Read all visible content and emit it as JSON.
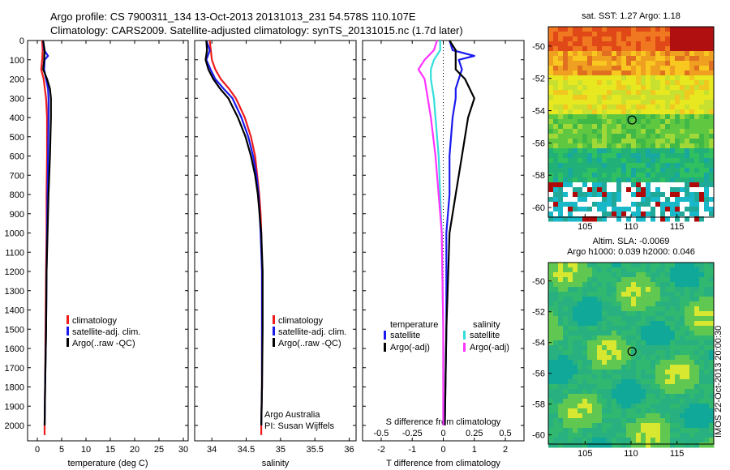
{
  "title_line1": "Argo profile: CS 7900311_134 13-Oct-2013 20131013_231 54.578S 110.107E",
  "title_line2": "Climatology: CARS2009. Satellite-adjusted climatology: synTS_20131015.nc (1.7d later)",
  "credit_lines": [
    "Argo Australia",
    "PI: Susan Wijffels"
  ],
  "map_sst_title": "sat. SST: 1.27 Argo: 1.18",
  "map_sla_title_1": "Altim. SLA: -0.0069",
  "map_sla_title_2": "Argo h1000: 0.039 h2000: 0.046",
  "imos_stamp": "IMOS 22-Oct-2013 20:00:30",
  "colors": {
    "climatology": "#ee1c1c",
    "satellite": "#1a1aee",
    "argo": "#000000",
    "sal_satellite": "#33dddd",
    "sal_argo": "#ff33ff"
  },
  "chart_data": [
    {
      "type": "line",
      "name": "temperature-profile",
      "xlabel": "temperature (deg C)",
      "xlim": [
        -2,
        31
      ],
      "xticks": [
        0,
        5,
        10,
        15,
        20,
        25,
        30
      ],
      "ylim": [
        0,
        2080
      ],
      "y_reversed": true,
      "yticks": [
        0,
        100,
        200,
        300,
        400,
        500,
        600,
        700,
        800,
        900,
        1000,
        1100,
        1200,
        1300,
        1400,
        1500,
        1600,
        1700,
        1800,
        1900,
        2000
      ],
      "legend": [
        "climatology",
        "satellite-adj. clim.",
        "Argo(..raw -QC)"
      ],
      "series": [
        {
          "name": "climatology",
          "depth": [
            0,
            50,
            100,
            150,
            200,
            300,
            400,
            600,
            800,
            1000,
            1200,
            1500,
            1800,
            2000,
            2050
          ],
          "values": [
            1.0,
            1.1,
            1.0,
            0.8,
            1.3,
            1.8,
            2.0,
            2.0,
            1.9,
            1.9,
            1.8,
            1.7,
            1.6,
            1.5,
            1.5
          ]
        },
        {
          "name": "satellite-adj. clim.",
          "depth": [
            0,
            50,
            80,
            100,
            150,
            200,
            250,
            300,
            400,
            600,
            800,
            1000,
            1200,
            1500,
            1800,
            2000
          ],
          "values": [
            1.2,
            1.4,
            2.2,
            1.5,
            1.4,
            1.8,
            2.2,
            2.3,
            2.3,
            2.2,
            2.1,
            2.0,
            1.9,
            1.8,
            1.6,
            1.5
          ]
        },
        {
          "name": "Argo(..raw -QC)",
          "depth": [
            0,
            50,
            100,
            150,
            200,
            250,
            300,
            400,
            500,
            600,
            800,
            1000,
            1200,
            1500,
            1800,
            2000
          ],
          "values": [
            1.2,
            1.5,
            1.4,
            1.2,
            2.0,
            2.6,
            2.8,
            2.8,
            2.7,
            2.6,
            2.3,
            2.1,
            1.9,
            1.8,
            1.6,
            1.5
          ]
        }
      ]
    },
    {
      "type": "line",
      "name": "salinity-profile",
      "xlabel": "salinity",
      "xlim": [
        33.75,
        36.1
      ],
      "xticks": [
        34,
        34.5,
        35,
        35.5,
        36
      ],
      "ylim": [
        0,
        2080
      ],
      "y_reversed": true,
      "legend": [
        "climatology",
        "satellite-adj. clim.",
        "Argo(..raw -QC)"
      ],
      "series": [
        {
          "name": "climatology",
          "depth": [
            0,
            100,
            150,
            200,
            250,
            300,
            400,
            500,
            600,
            700,
            800,
            900,
            1000,
            1200,
            1500,
            1800,
            2000,
            2050
          ],
          "values": [
            33.97,
            34.0,
            34.05,
            34.13,
            34.25,
            34.35,
            34.48,
            34.57,
            34.63,
            34.66,
            34.69,
            34.71,
            34.72,
            34.73,
            34.73,
            34.73,
            34.72,
            34.72
          ]
        },
        {
          "name": "satellite-adj. clim.",
          "depth": [
            0,
            50,
            100,
            150,
            200,
            250,
            300,
            400,
            500,
            600,
            700,
            800,
            1000,
            1200,
            1500,
            1800,
            2000
          ],
          "values": [
            33.92,
            33.97,
            33.92,
            33.98,
            34.05,
            34.17,
            34.3,
            34.43,
            34.53,
            34.6,
            34.65,
            34.68,
            34.71,
            34.73,
            34.73,
            34.73,
            34.72
          ]
        },
        {
          "name": "Argo(..raw -QC)",
          "depth": [
            0,
            50,
            100,
            150,
            200,
            250,
            300,
            400,
            500,
            600,
            700,
            800,
            1000,
            1200,
            1500,
            1800,
            2000
          ],
          "values": [
            33.92,
            33.93,
            33.91,
            33.95,
            34.02,
            34.12,
            34.24,
            34.38,
            34.49,
            34.57,
            34.63,
            34.67,
            34.72,
            34.74,
            34.74,
            34.73,
            34.72
          ]
        }
      ]
    },
    {
      "type": "line",
      "name": "difference-profile",
      "xlabel": "T difference from climatology",
      "xlim": [
        -2.6,
        2.6
      ],
      "xticks": [
        -2,
        -1,
        0,
        1,
        2
      ],
      "top_axis_label": "S difference from climatology",
      "top_ticks": [
        "-0.5",
        "-0.25",
        "0",
        "0.25",
        "0.5"
      ],
      "ylim": [
        0,
        2080
      ],
      "y_reversed": true,
      "legend_groups": [
        {
          "heading": "temperature",
          "entries": [
            "satellite",
            "Argo(-adj)"
          ]
        },
        {
          "heading": "salinity",
          "entries": [
            "satellite",
            "Argo(-adj)"
          ]
        }
      ],
      "series": [
        {
          "name": "temperature satellite",
          "depth": [
            0,
            50,
            80,
            100,
            150,
            200,
            250,
            300,
            400,
            600,
            800,
            1000,
            1500,
            2000
          ],
          "values": [
            0.2,
            0.3,
            1.0,
            0.5,
            0.6,
            0.5,
            0.4,
            0.4,
            0.3,
            0.2,
            0.2,
            0.1,
            0.1,
            0.05
          ]
        },
        {
          "name": "temperature Argo(-adj)",
          "depth": [
            0,
            50,
            100,
            150,
            200,
            300,
            400,
            600,
            800,
            1000,
            1500,
            2000
          ],
          "values": [
            0.2,
            0.4,
            0.4,
            0.4,
            0.7,
            1.0,
            0.8,
            0.6,
            0.4,
            0.2,
            0.1,
            0.05
          ]
        },
        {
          "name": "salinity satellite",
          "depth": [
            0,
            50,
            100,
            150,
            200,
            300,
            400,
            600,
            800,
            1000,
            1500,
            2000
          ],
          "values": [
            -0.1,
            -0.1,
            -0.3,
            -0.4,
            -0.4,
            -0.3,
            -0.25,
            -0.15,
            -0.1,
            -0.05,
            0.0,
            0.0
          ]
        },
        {
          "name": "salinity Argo(-adj)",
          "depth": [
            0,
            50,
            100,
            150,
            200,
            300,
            400,
            600,
            800,
            1000,
            1500,
            2000
          ],
          "values": [
            -0.2,
            -0.3,
            -0.6,
            -0.8,
            -0.6,
            -0.5,
            -0.4,
            -0.25,
            -0.15,
            -0.05,
            0.0,
            0.0
          ]
        }
      ]
    },
    {
      "type": "heatmap",
      "name": "sst-map",
      "xticks": [
        105,
        110,
        115
      ],
      "yticks": [
        -50,
        -52,
        -54,
        -56,
        -58,
        -60
      ],
      "xlim": [
        101,
        119
      ],
      "ylim": [
        -60.6,
        -48.8
      ],
      "marker": {
        "lon": 110.107,
        "lat": -54.578
      }
    },
    {
      "type": "heatmap",
      "name": "sla-map",
      "xticks": [
        105,
        110,
        115
      ],
      "yticks": [
        -50,
        -52,
        -54,
        -56,
        -58,
        -60
      ],
      "xlim": [
        101,
        119
      ],
      "ylim": [
        -60.6,
        -48.8
      ],
      "marker": {
        "lon": 110.107,
        "lat": -54.578
      }
    }
  ]
}
